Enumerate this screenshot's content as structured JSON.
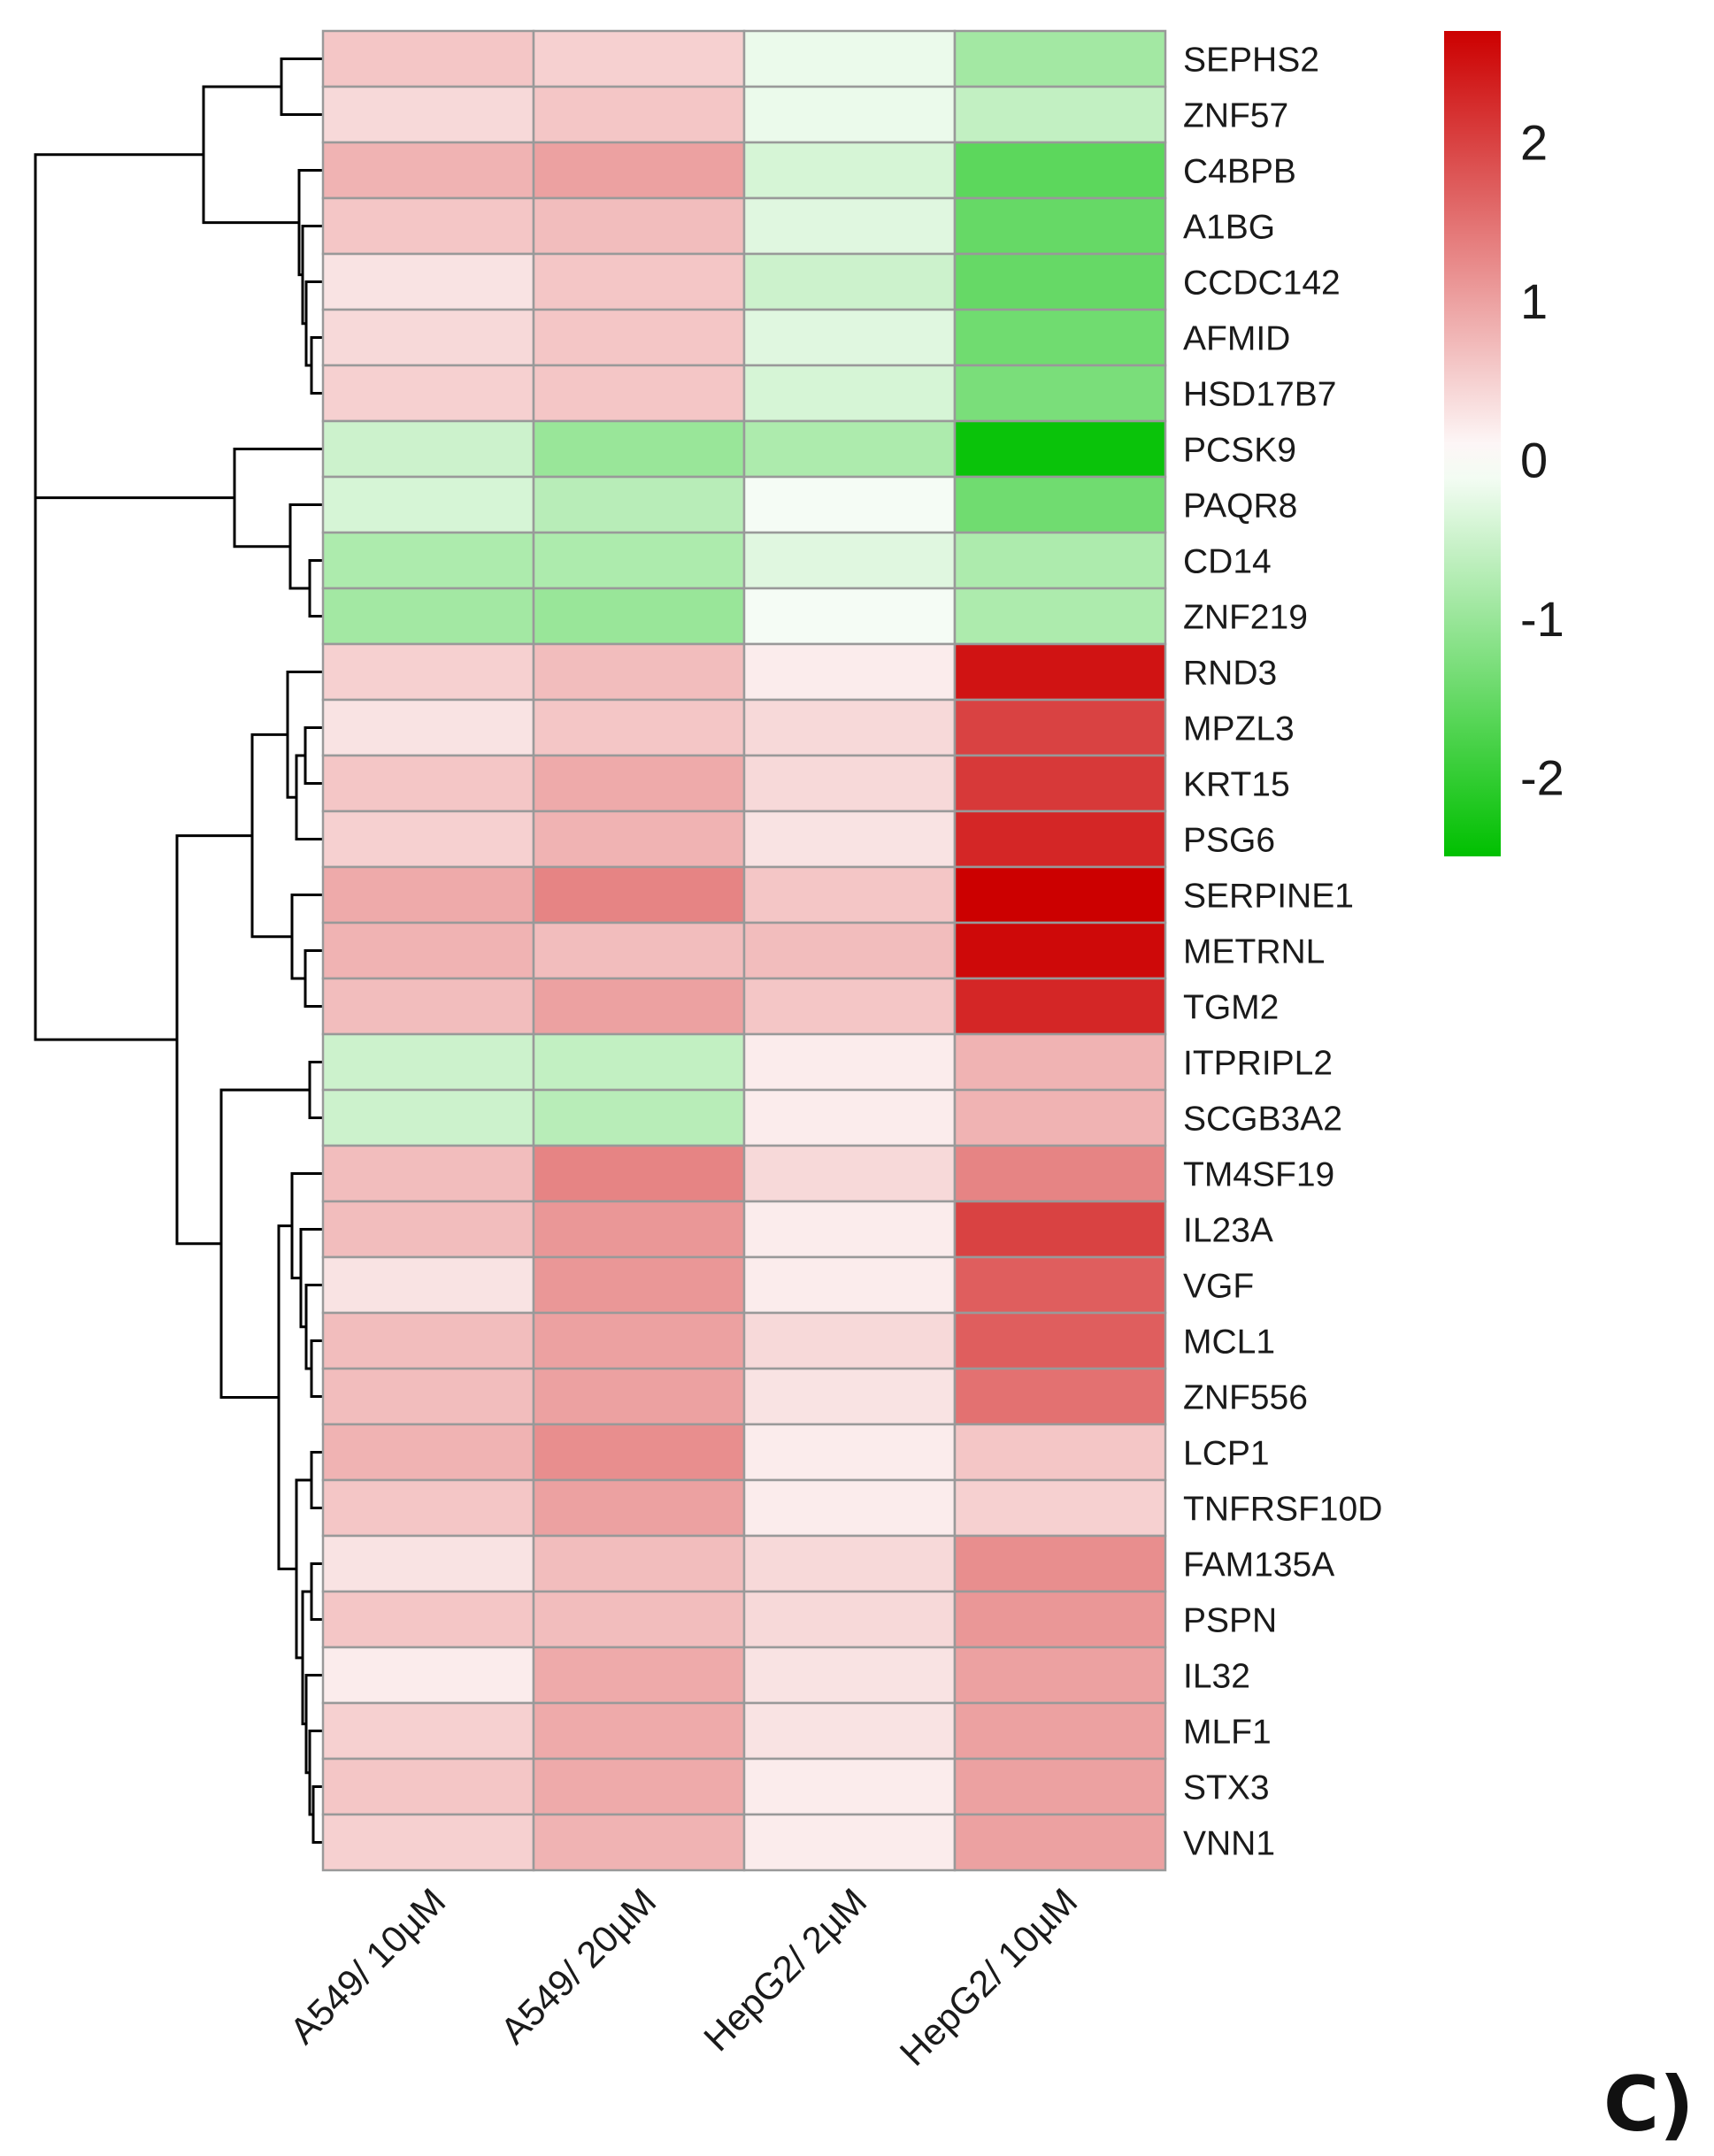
{
  "chart_data": {
    "type": "heatmap",
    "panel_label": "C)",
    "columns": [
      "A549/ 10µM",
      "A549/ 20µM",
      "HepG2/ 2µM",
      "HepG2/ 10µM"
    ],
    "rows": [
      "SEPHS2",
      "ZNF57",
      "C4BPB",
      "A1BG",
      "CCDC142",
      "AFMID",
      "HSD17B7",
      "PCSK9",
      "PAQR8",
      "CD14",
      "ZNF219",
      "RND3",
      "MPZL3",
      "KRT15",
      "PSG6",
      "SERPINE1",
      "METRNL",
      "TGM2",
      "ITPRIPL2",
      "SCGB3A2",
      "TM4SF19",
      "IL23A",
      "VGF",
      "MCL1",
      "ZNF556",
      "LCP1",
      "TNFRSF10D",
      "FAM135A",
      "PSPN",
      "IL32",
      "MLF1",
      "STX3",
      "VNN1"
    ],
    "values": [
      [
        0.6,
        0.5,
        -0.2,
        -0.9
      ],
      [
        0.4,
        0.6,
        -0.2,
        -0.6
      ],
      [
        0.8,
        1.0,
        -0.4,
        -1.6
      ],
      [
        0.6,
        0.7,
        -0.3,
        -1.5
      ],
      [
        0.3,
        0.6,
        -0.5,
        -1.5
      ],
      [
        0.4,
        0.6,
        -0.3,
        -1.4
      ],
      [
        0.5,
        0.6,
        -0.4,
        -1.3
      ],
      [
        -0.5,
        -1.0,
        -0.8,
        -2.4
      ],
      [
        -0.4,
        -0.7,
        -0.1,
        -1.4
      ],
      [
        -0.8,
        -0.8,
        -0.3,
        -0.8
      ],
      [
        -0.9,
        -1.0,
        -0.1,
        -0.8
      ],
      [
        0.5,
        0.7,
        0.2,
        2.5
      ],
      [
        0.3,
        0.6,
        0.4,
        2.0
      ],
      [
        0.6,
        0.9,
        0.4,
        2.1
      ],
      [
        0.5,
        0.8,
        0.3,
        2.3
      ],
      [
        0.9,
        1.3,
        0.6,
        2.8
      ],
      [
        0.8,
        0.7,
        0.7,
        2.6
      ],
      [
        0.7,
        1.0,
        0.6,
        2.3
      ],
      [
        -0.5,
        -0.6,
        0.2,
        0.8
      ],
      [
        -0.5,
        -0.7,
        0.2,
        0.8
      ],
      [
        0.7,
        1.3,
        0.4,
        1.3
      ],
      [
        0.7,
        1.1,
        0.2,
        2.0
      ],
      [
        0.3,
        1.1,
        0.2,
        1.7
      ],
      [
        0.7,
        1.0,
        0.4,
        1.7
      ],
      [
        0.7,
        1.0,
        0.3,
        1.5
      ],
      [
        0.8,
        1.2,
        0.2,
        0.6
      ],
      [
        0.6,
        1.0,
        0.2,
        0.5
      ],
      [
        0.3,
        0.7,
        0.4,
        1.2
      ],
      [
        0.6,
        0.7,
        0.4,
        1.1
      ],
      [
        0.2,
        0.9,
        0.3,
        1.0
      ],
      [
        0.5,
        0.9,
        0.3,
        1.0
      ],
      [
        0.6,
        0.9,
        0.2,
        1.0
      ],
      [
        0.5,
        0.8,
        0.2,
        1.0
      ]
    ],
    "color_scale": {
      "min": -2.5,
      "max": 2.7,
      "low_color": "#00c000",
      "mid_color": "#ffffff",
      "high_color": "#cc0000",
      "ticks": [
        "2",
        "1",
        "0",
        "-1",
        "-2"
      ],
      "tick_values": [
        2,
        1,
        0,
        -1,
        -2
      ]
    },
    "cell_border_color": "#999999",
    "dendrogram_color": "#000000",
    "row_dendrogram": "hierarchical clustering tree on left"
  }
}
